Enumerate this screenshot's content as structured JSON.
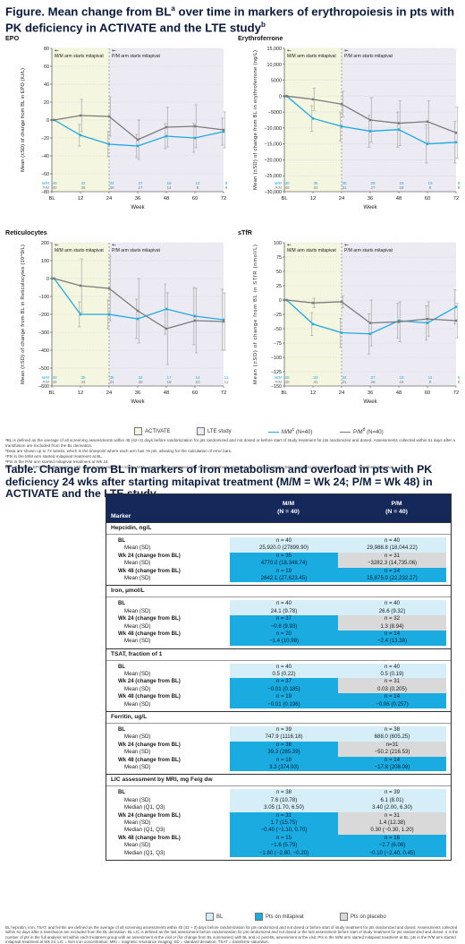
{
  "figure": {
    "title_main": "Figure. Mean change from BL",
    "title_sup_a": "a",
    "title_mid": " over time in markers of erythropoiesis in pts with PK deficiency in ACTIVATE and the LTE study",
    "title_sup_b": "b"
  },
  "colors": {
    "activate_bg": "#f4f6df",
    "lte_bg": "#ecebf3",
    "mm_line": "#1eaadf",
    "pm_line": "#7b7b7b",
    "err_bar": "#9a9a9a",
    "grid": "#bbbbbb"
  },
  "chart_data": [
    {
      "type": "line",
      "panel_title": "EPO",
      "ylabel": "Mean (±SD) of change from BL in EPO (IU/L)",
      "xlabel": "Week",
      "x": [
        "BL",
        12,
        24,
        36,
        48,
        60,
        72
      ],
      "ylim": [
        -80,
        80
      ],
      "yticks": [
        80,
        60,
        40,
        20,
        0,
        -20,
        -40,
        -60,
        -80
      ],
      "yticklabels": [
        "80",
        "60",
        "40",
        "20",
        "0",
        "−20",
        "−40",
        "−60",
        "−80"
      ],
      "annotations": [
        "M/M arm starts mitapivat",
        "P/M arm starts mitapivat"
      ],
      "series": [
        {
          "name": "M/M",
          "x": [
            0,
            1,
            12,
            24,
            36,
            48,
            60,
            72
          ],
          "values": [
            0,
            0,
            -17,
            -27,
            -29,
            -18,
            -20,
            -13
          ],
          "err": [
            0,
            0,
            12,
            14,
            13,
            14,
            16,
            15
          ],
          "n": [
            "40",
            "",
            "32",
            "34",
            "27",
            "16",
            "12",
            "8"
          ]
        },
        {
          "name": "P/M",
          "x": [
            0,
            1,
            12,
            24,
            36,
            48,
            60,
            72
          ],
          "values": [
            0,
            0,
            5,
            4,
            -22,
            -8,
            -7,
            -11
          ],
          "err": [
            0,
            0,
            18,
            22,
            22,
            22,
            24,
            20
          ],
          "n": [
            "40",
            "",
            "36",
            "30",
            "27",
            "14",
            "8",
            "8"
          ]
        }
      ]
    },
    {
      "type": "line",
      "panel_title": "Erythroferrone",
      "ylabel": "Mean (±SD) of change from BL in erythroferrone (ng/L)",
      "xlabel": "Week",
      "x": [
        "BL",
        12,
        24,
        36,
        48,
        60,
        72
      ],
      "ylim": [
        -30000,
        15000
      ],
      "yticks": [
        15000,
        10000,
        5000,
        0,
        -5000,
        -10000,
        -15000,
        -20000,
        -25000,
        -30000
      ],
      "yticklabels": [
        "15,000",
        "10,000",
        "5000",
        "0",
        "−5000",
        "−10,000",
        "−15,000",
        "−20,000",
        "−25,000",
        "−30,000"
      ],
      "annotations": [
        "M/M arm starts mitapivat",
        "P/M arm starts mitapivat"
      ],
      "series": [
        {
          "name": "M/M",
          "x": [
            0,
            1,
            12,
            24,
            36,
            48,
            60,
            72
          ],
          "values": [
            0,
            0,
            -7000,
            -9500,
            -11000,
            -10500,
            -15000,
            -14500
          ],
          "err": [
            0,
            0,
            4000,
            4500,
            5000,
            5500,
            6000,
            6500
          ],
          "n": [
            "40",
            "",
            "35",
            "35",
            "28",
            "18",
            "13",
            "9"
          ]
        },
        {
          "name": "P/M",
          "x": [
            0,
            1,
            12,
            24,
            36,
            48,
            60,
            72
          ],
          "values": [
            0,
            0,
            -1000,
            -2500,
            -7500,
            -8500,
            -8000,
            -11500
          ],
          "err": [
            0,
            0,
            3500,
            4000,
            7000,
            7000,
            6500,
            8000
          ],
          "n": [
            "40",
            "",
            "32",
            "31",
            "27",
            "18",
            "8",
            "8"
          ]
        }
      ]
    },
    {
      "type": "line",
      "panel_title": "Reticulocytes",
      "ylabel": "Mean (±SD) of change from BL in Reticulocytes (10^9/L)",
      "xlabel": "Week",
      "x": [
        "BL",
        12,
        24,
        36,
        48,
        60,
        72
      ],
      "ylim": [
        -600,
        200
      ],
      "yticks": [
        200,
        100,
        0,
        -100,
        -200,
        -300,
        -400,
        -500,
        -600
      ],
      "yticklabels": [
        "200",
        "100",
        "0",
        "−100",
        "−200",
        "−300",
        "−400",
        "−500",
        "−600"
      ],
      "annotations": [
        "M/M arm starts mitapivat",
        "P/M arm starts mitapivat"
      ],
      "series": [
        {
          "name": "M/M",
          "x": [
            0,
            1,
            12,
            24,
            36,
            48,
            60,
            72
          ],
          "values": [
            0,
            0,
            -200,
            -200,
            -225,
            -170,
            -210,
            -230
          ],
          "err": [
            0,
            0,
            70,
            80,
            110,
            140,
            160,
            170
          ],
          "n": [
            "40",
            "",
            "35",
            "35",
            "32",
            "17",
            "14",
            "11"
          ]
        },
        {
          "name": "P/M",
          "x": [
            0,
            1,
            12,
            24,
            36,
            48,
            60,
            72
          ],
          "values": [
            0,
            0,
            -40,
            -55,
            -180,
            -280,
            -235,
            -240
          ],
          "err": [
            0,
            0,
            150,
            180,
            180,
            200,
            180,
            160
          ],
          "n": [
            "40",
            "",
            "34",
            "31",
            "30",
            "19",
            "10",
            "11"
          ]
        }
      ]
    },
    {
      "type": "line",
      "panel_title": "sTfR",
      "ylabel": "Mean (±SD) of change from BL in STfR (nmol/L)",
      "xlabel": "Week",
      "x": [
        "BL",
        12,
        24,
        36,
        48,
        60,
        72
      ],
      "ylim": [
        -150,
        100
      ],
      "yticks": [
        100,
        75,
        50,
        25,
        0,
        -25,
        -50,
        -75,
        -100,
        -125,
        -150
      ],
      "yticklabels": [
        "100",
        "75",
        "50",
        "25",
        "0",
        "−25",
        "−50",
        "−75",
        "−100",
        "−125",
        "−150"
      ],
      "annotations": [
        "M/M arm starts mitapivat",
        "P/M arm starts mitapivat"
      ],
      "series": [
        {
          "name": "M/M",
          "x": [
            0,
            1,
            12,
            24,
            36,
            48,
            60,
            72
          ],
          "values": [
            0,
            0,
            -42,
            -57,
            -59,
            -36,
            -40,
            -12
          ],
          "err": [
            0,
            0,
            20,
            25,
            35,
            30,
            30,
            30
          ],
          "n": [
            "40",
            "",
            "33",
            "34",
            "27",
            "19",
            "11",
            "9"
          ]
        },
        {
          "name": "P/M",
          "x": [
            0,
            1,
            12,
            24,
            36,
            48,
            60,
            72
          ],
          "values": [
            0,
            0,
            -5,
            -3,
            -40,
            -38,
            -33,
            -36
          ],
          "err": [
            0,
            0,
            8,
            10,
            40,
            35,
            30,
            30
          ],
          "n": [
            "40",
            "",
            "31",
            "31",
            "26",
            "18",
            "9",
            "8"
          ]
        }
      ]
    }
  ],
  "legend": {
    "activate": "ACTIVATE",
    "lte": "LTE study",
    "mm": "M/M",
    "mm_sup": "c",
    "mm_n": " (N=40)",
    "pm": "P/M",
    "pm_sup": "d",
    "pm_n": " (N=40)"
  },
  "footnotes": [
    "ᵃBL is defined as the average of all screening assessments within 45 (42+3) days before randomization for pts randomized and not dosed or before start of study treatment for pts randomized and dosed. Assessments collected within 61 days after a transfusion are excluded from the BL derivation.",
    "ᵇData are shown up to 72 weeks, which is the timepoint where each arm has >5 pts, allowing for the calculation of error bars.",
    "ᶜPts in the M/M arm started mitapivat treatment at BL.",
    "ᵈPts in the P/M arm started mitapivat treatment at Wk 24.",
    "BL = Baseline; EPO = Erythropoietin; LTE = Long-term extension study; M/M = mitapivat to mitapivat arm; P/M = placebo to mitapivat arm; Pts = patients; SD = standard deviation; sTfR = soluble transferrin receptor"
  ],
  "table": {
    "title": "Table. Change from BL in markers of iron metabolism and overload in pts with PK deficiency 24 wks after starting mitapivat treatment (M/M = Wk 24; P/M = Wk 48) in ACTIVATE and the LTE study",
    "header": {
      "marker": "Marker",
      "mm": "M/M",
      "mm_n": "(N = 40)",
      "pm": "P/M",
      "pm_n": "(N = 40)"
    },
    "sections": [
      {
        "title": "Hepcidin, ng/L",
        "rows": [
          {
            "label": "BL",
            "kind": "bold",
            "mm": "n = 40",
            "pm": "n = 40",
            "mm_bg": "bl",
            "pm_bg": "bl"
          },
          {
            "label": "Mean (SD)",
            "kind": "sub",
            "mm": "25,920.0 (27899.90)",
            "pm": "29,988.8 (18,044.22)",
            "mm_bg": "bl",
            "pm_bg": "bl"
          },
          {
            "label": "Wk 24 (change from BL)",
            "kind": "bold",
            "mm": "n = 35",
            "pm": "n = 31",
            "mm_bg": "mit",
            "pm_bg": "plc"
          },
          {
            "label": "Mean (SD)",
            "kind": "sub",
            "mm": "4770.0 (18,348.74)",
            "pm": "−3282.3 (14,735.06)",
            "mm_bg": "mit",
            "pm_bg": "plc"
          },
          {
            "label": "Wk 48 (change from BL)",
            "kind": "bold",
            "mm": "n = 19",
            "pm": "n = 14",
            "mm_bg": "mit",
            "pm_bg": "mit"
          },
          {
            "label": "Mean (SD)",
            "kind": "sub",
            "mm": "2642.1 (27,623.45)",
            "pm": "15,875.0 (22,232.27)",
            "mm_bg": "mit",
            "pm_bg": "mit"
          }
        ]
      },
      {
        "title": "Iron, µmol/L",
        "rows": [
          {
            "label": "BL",
            "kind": "bold",
            "mm": "n = 40",
            "pm": "n = 40",
            "mm_bg": "bl",
            "pm_bg": "bl"
          },
          {
            "label": "Mean (SD)",
            "kind": "sub",
            "mm": "24.1 (9.78)",
            "pm": "26.6 (9.32)",
            "mm_bg": "bl",
            "pm_bg": "bl"
          },
          {
            "label": "Wk 24 (change from BL)",
            "kind": "bold",
            "mm": "n = 37",
            "pm": "n = 32",
            "mm_bg": "mit",
            "pm_bg": "plc"
          },
          {
            "label": "Mean (SD)",
            "kind": "sub",
            "mm": "−0.8 (9.93)",
            "pm": "1.3 (8.94)",
            "mm_bg": "mit",
            "pm_bg": "plc"
          },
          {
            "label": "Wk 48 (change from BL)",
            "kind": "bold",
            "mm": "n = 20",
            "pm": "n = 14",
            "mm_bg": "mit",
            "pm_bg": "mit"
          },
          {
            "label": "Mean (SD)",
            "kind": "sub",
            "mm": "−1.4 (10.98)",
            "pm": "−2.4 (13.38)",
            "mm_bg": "mit",
            "pm_bg": "mit"
          }
        ]
      },
      {
        "title": "TSAT, fraction of 1",
        "rows": [
          {
            "label": "BL",
            "kind": "bold",
            "mm": "n = 40",
            "pm": "n = 40",
            "mm_bg": "bl",
            "pm_bg": "bl"
          },
          {
            "label": "Mean (SD)",
            "kind": "sub",
            "mm": "0.5 (0.22)",
            "pm": "0.5 (0.19)",
            "mm_bg": "bl",
            "pm_bg": "bl"
          },
          {
            "label": "Wk 24 (change from BL)",
            "kind": "bold",
            "mm": "n = 37",
            "pm": "n = 31",
            "mm_bg": "mit",
            "pm_bg": "plc"
          },
          {
            "label": "Mean (SD)",
            "kind": "sub",
            "mm": "−0.01 (0.185)",
            "pm": "0.03 (0.205)",
            "mm_bg": "mit",
            "pm_bg": "plc"
          },
          {
            "label": "Wk 48 (change from BL)",
            "kind": "bold",
            "mm": "n = 19",
            "pm": "n = 14",
            "mm_bg": "mit",
            "pm_bg": "mit"
          },
          {
            "label": "Mean (SD)",
            "kind": "sub",
            "mm": "−0.01 (0.196)",
            "pm": "−0.06 (0.257)",
            "mm_bg": "mit",
            "pm_bg": "mit"
          }
        ]
      },
      {
        "title": "Ferritin, ug/L",
        "rows": [
          {
            "label": "BL",
            "kind": "bold",
            "mm": "n = 39",
            "pm": "n = 38",
            "mm_bg": "bl",
            "pm_bg": "bl"
          },
          {
            "label": "Mean (SD)",
            "kind": "sub",
            "mm": "747.9 (1116.18)",
            "pm": "688.0 (605.25)",
            "mm_bg": "bl",
            "pm_bg": "bl"
          },
          {
            "label": "Wk 24 (change from BL)",
            "kind": "bold",
            "mm": "n = 36",
            "pm": "n=31",
            "mm_bg": "mit",
            "pm_bg": "plc"
          },
          {
            "label": "Mean (SD)",
            "kind": "sub",
            "mm": "39.3 (285.39)",
            "pm": "−50.2 (216.53)",
            "mm_bg": "mit",
            "pm_bg": "plc"
          },
          {
            "label": "Wk 48 (change from BL)",
            "kind": "bold",
            "mm": "n = 18",
            "pm": "n = 14",
            "mm_bg": "mit",
            "pm_bg": "mit"
          },
          {
            "label": "Mean (SD)",
            "kind": "sub",
            "mm": "3.3 (374.93)",
            "pm": "−17.8 (208.08)",
            "mm_bg": "mit",
            "pm_bg": "mit"
          }
        ]
      },
      {
        "title": "LIC assessment by MRI, mg Fe/g dw",
        "rows": [
          {
            "label": "BL",
            "kind": "bold",
            "mm": "n = 38",
            "pm": "n = 39",
            "mm_bg": "bl",
            "pm_bg": "bl"
          },
          {
            "label": "Mean (SD)",
            "kind": "sub",
            "mm": "7.6 (10.78)",
            "pm": "6.1 (8.01)",
            "mm_bg": "bl",
            "pm_bg": "bl"
          },
          {
            "label": "Median (Q1, Q3)",
            "kind": "sub",
            "mm": "3.05 (1.70, 6.50)",
            "pm": "3.40 (2.00, 6.30)",
            "mm_bg": "bl",
            "pm_bg": "bl"
          },
          {
            "label": "Wk 24 (change from BL)",
            "kind": "bold",
            "mm": "n = 31",
            "pm": "n = 31",
            "mm_bg": "mit",
            "pm_bg": "plc"
          },
          {
            "label": "Mean (SD)",
            "kind": "sub",
            "mm": "1.7 (15.75)",
            "pm": "1.4 (12.38)",
            "mm_bg": "mit",
            "pm_bg": "plc"
          },
          {
            "label": "Median (Q1, Q3)",
            "kind": "sub",
            "mm": "−0.40 (−1.10, 0.70)",
            "pm": "0.30 (−0.30, 1.20)",
            "mm_bg": "mit",
            "pm_bg": "plc"
          },
          {
            "label": "Wk 48 (change from BL)",
            "kind": "bold",
            "mm": "n = 15",
            "pm": "n = 16",
            "mm_bg": "mit",
            "pm_bg": "mit"
          },
          {
            "label": "Mean (SD)",
            "kind": "sub",
            "mm": "−1.6 (5.79)",
            "pm": "−2.7 (6.08)",
            "mm_bg": "mit",
            "pm_bg": "mit"
          },
          {
            "label": "Median (Q1, Q3)",
            "kind": "sub",
            "mm": "−1.80 (−2.80, −0.20)",
            "pm": "−0.10 (−2.40, 0.45)",
            "mm_bg": "mit",
            "pm_bg": "mit"
          }
        ]
      }
    ],
    "legend": {
      "bl": "BL",
      "mit": "Pts on mitapivat",
      "plc": "Pts on placebo"
    },
    "footnote": "BL hepcidin, iron, TSAT, and ferritin are defined as the average of all screening assessments within 45 (42 + 3) days before randomization for pts randomized and not dosed or before start of study treatment for pts randomized and dosed. Assessments collected within 61 days after a transfusion are excluded from the BL derivation. BL LIC is defined as the last assessment before randomization for pts randomized and not dosed or the last assessment before start of study treatment for pts randomized and dosed. n is the number of pts in the full analysis set within each treatment group with an assessment at the visit or (for change from BL summaries) with BL and ≥1 post-BL assessment at the visit. Pts in the M/M arm started mitapivat treatment at BL; pts in the P/M arm started mitapivat treatment at Wk 24. LIC = liver iron concentration; MRI = magnetic resonance imaging; SD = standard deviation; TSAT = transferrin saturation."
  }
}
